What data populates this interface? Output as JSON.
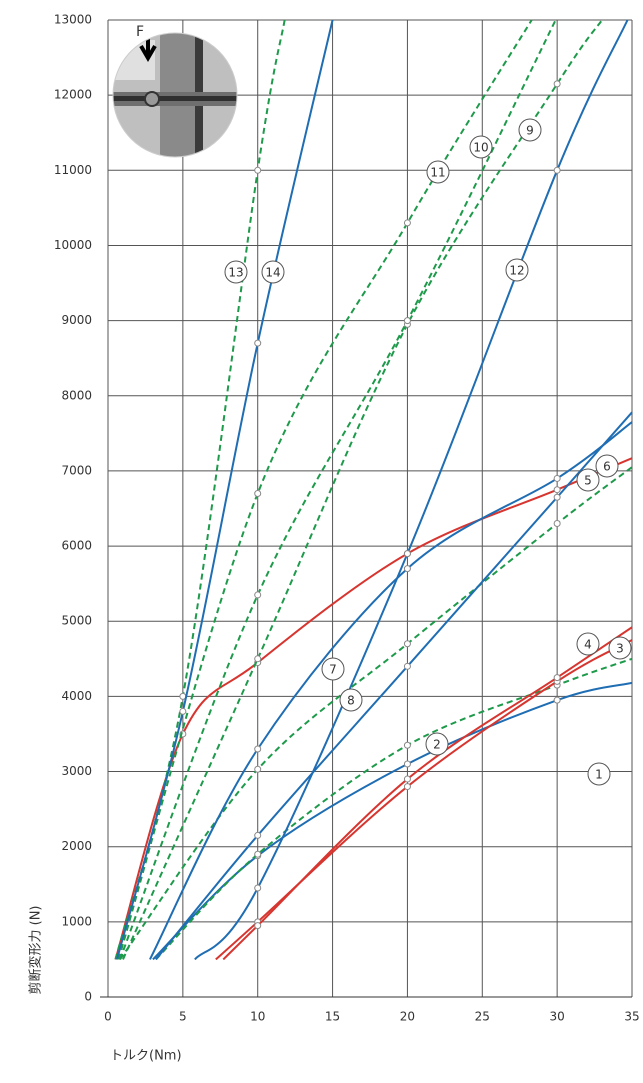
{
  "chart_data": {
    "type": "line",
    "x_label": "トルク(Nm)",
    "y_label": "剪断変形力 (N)",
    "inset_label": "F",
    "xlim": [
      0,
      35
    ],
    "xticks": [
      0,
      5,
      10,
      15,
      20,
      25,
      30,
      35
    ],
    "ylim": [
      0,
      13000
    ],
    "yticks": [
      0,
      1000,
      2000,
      3000,
      4000,
      5000,
      6000,
      7000,
      8000,
      9000,
      10000,
      11000,
      12000,
      13000
    ],
    "grid": true,
    "series": [
      {
        "name": "1",
        "color": "#1f6db3",
        "style": "solid",
        "x": [
          3,
          10,
          20,
          30,
          35
        ],
        "values": [
          500,
          1880,
          3100,
          3950,
          4180
        ]
      },
      {
        "name": "2",
        "color": "#1e9a4b",
        "style": "dashed",
        "x": [
          3.2,
          10,
          20,
          30,
          35
        ],
        "values": [
          500,
          1900,
          3350,
          4150,
          4500
        ]
      },
      {
        "name": "3",
        "color": "#d7352f",
        "style": "solid",
        "x": [
          7.2,
          10,
          20,
          30,
          35
        ],
        "values": [
          500,
          1000,
          2800,
          4200,
          4750
        ]
      },
      {
        "name": "4",
        "color": "#d7352f",
        "style": "solid",
        "x": [
          7.7,
          10,
          20,
          30,
          35
        ],
        "values": [
          500,
          950,
          2900,
          4250,
          4920
        ]
      },
      {
        "name": "5",
        "color": "#1e9a4b",
        "style": "dashed",
        "x": [
          0.8,
          10,
          20,
          30,
          35
        ],
        "values": [
          500,
          3030,
          4700,
          6300,
          7050
        ]
      },
      {
        "name": "6",
        "color": "#d7352f",
        "style": "solid",
        "x": [
          0.5,
          5,
          10,
          20,
          30,
          35
        ],
        "values": [
          500,
          3500,
          4450,
          5900,
          6750,
          7170
        ]
      },
      {
        "name": "7",
        "color": "#1f6db3",
        "style": "solid",
        "x": [
          2.8,
          10,
          20,
          30,
          35
        ],
        "values": [
          500,
          3300,
          5700,
          6900,
          7650
        ]
      },
      {
        "name": "8",
        "color": "#1f6db3",
        "style": "solid",
        "x": [
          3.2,
          10,
          20,
          30,
          35
        ],
        "values": [
          500,
          2150,
          4400,
          6650,
          7780
        ]
      },
      {
        "name": "9",
        "color": "#1e9a4b",
        "style": "dashed",
        "x": [
          1,
          10,
          20,
          30,
          33
        ],
        "values": [
          500,
          4500,
          8950,
          12150,
          13000
        ]
      },
      {
        "name": "10",
        "color": "#1e9a4b",
        "style": "dashed",
        "x": [
          0.8,
          10,
          20,
          29.9
        ],
        "values": [
          500,
          5350,
          9000,
          13000
        ]
      },
      {
        "name": "11",
        "color": "#1e9a4b",
        "style": "dashed",
        "x": [
          0.7,
          10,
          20,
          28.3
        ],
        "values": [
          500,
          6700,
          10300,
          13000
        ]
      },
      {
        "name": "12",
        "color": "#1f6db3",
        "style": "solid",
        "x": [
          5.8,
          10,
          20,
          30,
          34.7
        ],
        "values": [
          500,
          1450,
          5900,
          11000,
          13000
        ]
      },
      {
        "name": "13",
        "color": "#1e9a4b",
        "style": "dashed",
        "x": [
          0.5,
          5,
          10,
          11.8
        ],
        "values": [
          500,
          4000,
          11000,
          13000
        ]
      },
      {
        "name": "14",
        "color": "#1f6db3",
        "style": "solid",
        "x": [
          0.6,
          5,
          10,
          15
        ],
        "values": [
          500,
          3800,
          8700,
          13000
        ]
      }
    ]
  }
}
